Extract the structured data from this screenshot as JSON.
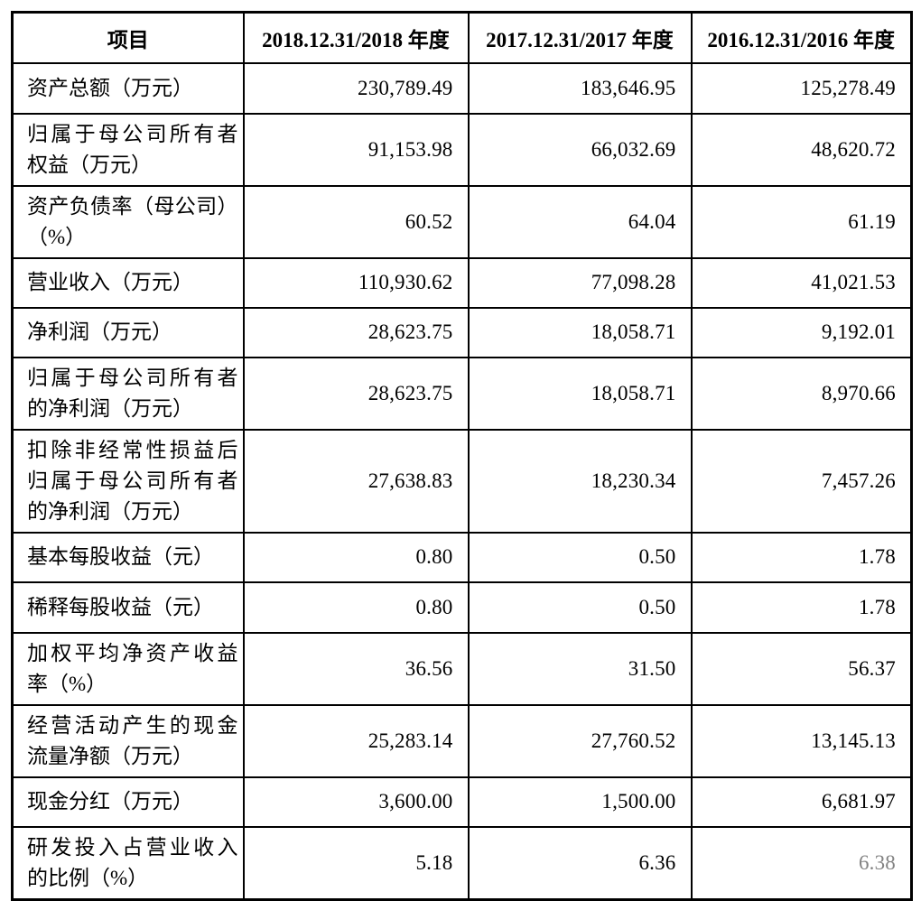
{
  "table": {
    "columns": [
      "项目",
      "2018.12.31/2018 年度",
      "2017.12.31/2017 年度",
      "2016.12.31/2016 年度"
    ],
    "rows": [
      {
        "label": "资产总额（万元）",
        "values": [
          "230,789.49",
          "183,646.95",
          "125,278.49"
        ]
      },
      {
        "label": "归属于母公司所有者\n权益（万元）",
        "values": [
          "91,153.98",
          "66,032.69",
          "48,620.72"
        ]
      },
      {
        "label": "资产负债率（母公司）\n（%）",
        "values": [
          "60.52",
          "64.04",
          "61.19"
        ]
      },
      {
        "label": "营业收入（万元）",
        "values": [
          "110,930.62",
          "77,098.28",
          "41,021.53"
        ]
      },
      {
        "label": "净利润（万元）",
        "values": [
          "28,623.75",
          "18,058.71",
          "9,192.01"
        ]
      },
      {
        "label": "归属于母公司所有者\n的净利润（万元）",
        "values": [
          "28,623.75",
          "18,058.71",
          "8,970.66"
        ]
      },
      {
        "label": "扣除非经常性损益后\n归属于母公司所有者\n的净利润（万元）",
        "values": [
          "27,638.83",
          "18,230.34",
          "7,457.26"
        ]
      },
      {
        "label": "基本每股收益（元）",
        "values": [
          "0.80",
          "0.50",
          "1.78"
        ]
      },
      {
        "label": "稀释每股收益（元）",
        "values": [
          "0.80",
          "0.50",
          "1.78"
        ]
      },
      {
        "label": "加权平均净资产收益\n率（%）",
        "values": [
          "36.56",
          "31.50",
          "56.37"
        ]
      },
      {
        "label": "经营活动产生的现金\n流量净额（万元）",
        "values": [
          "25,283.14",
          "27,760.52",
          "13,145.13"
        ]
      },
      {
        "label": "现金分红（万元）",
        "values": [
          "3,600.00",
          "1,500.00",
          "6,681.97"
        ]
      },
      {
        "label": "研发投入占营业收入\n的比例（%）",
        "values": [
          "5.18",
          "6.36",
          "6.38"
        ]
      }
    ]
  },
  "colors": {
    "text": "#000000",
    "border": "#000000",
    "muted_value": "#828282"
  }
}
